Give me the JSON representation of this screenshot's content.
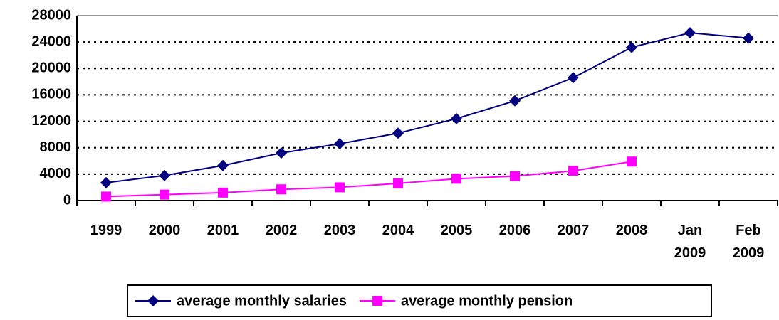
{
  "chart_data": {
    "type": "line",
    "categories": [
      "1999",
      "2000",
      "2001",
      "2002",
      "2003",
      "2004",
      "2005",
      "2006",
      "2007",
      "2008",
      "Jan 2009",
      "Feb 2009"
    ],
    "series": [
      {
        "name": "average monthly salaries",
        "color": "#000080",
        "marker": "diamond",
        "values": [
          2700,
          3800,
          5300,
          7200,
          8600,
          10200,
          12400,
          15100,
          18600,
          23200,
          25400,
          24600
        ]
      },
      {
        "name": "average monthly pension",
        "color": "#ff00ff",
        "marker": "square",
        "values": [
          600,
          900,
          1200,
          1700,
          2000,
          2600,
          3300,
          3700,
          4500,
          5900,
          null,
          null
        ]
      }
    ],
    "ylim": [
      0,
      28000
    ],
    "yticks": [
      0,
      4000,
      8000,
      12000,
      16000,
      20000,
      24000,
      28000
    ],
    "grid": true,
    "legend": "bottom"
  }
}
